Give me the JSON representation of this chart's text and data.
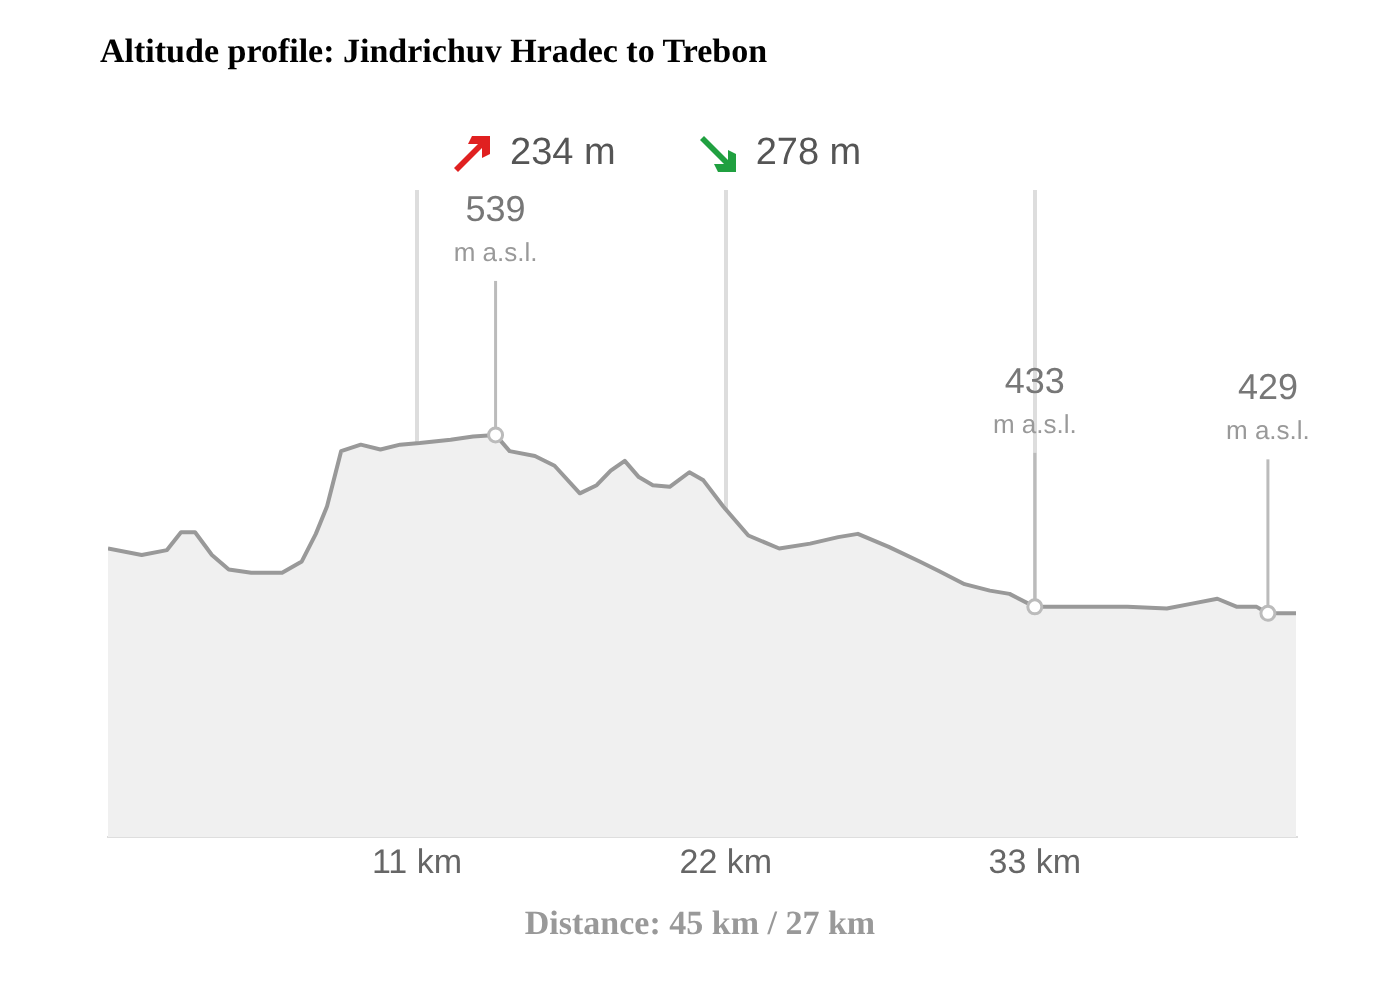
{
  "chart_data": {
    "type": "area",
    "title": "Altitude profile: Jindrichuv Hradec to Trebon",
    "xlabel": "Distance: 45 km / 27 km",
    "annotations": [
      "234 m",
      "278 m"
    ],
    "x": [
      0,
      1.2,
      2.1,
      2.6,
      3.1,
      3.7,
      4.3,
      5.1,
      6.2,
      6.9,
      7.4,
      7.8,
      8.3,
      9.0,
      9.7,
      10.4,
      11.1,
      12.2,
      13.0,
      13.8,
      14.3,
      15.2,
      15.9,
      16.8,
      17.4,
      17.9,
      18.4,
      18.9,
      19.4,
      20.0,
      20.7,
      21.2,
      21.9,
      22.8,
      23.9,
      25.0,
      26.0,
      26.7,
      27.8,
      28.9,
      29.6,
      30.5,
      31.4,
      32.1,
      33.0,
      34.2,
      36.3,
      37.7,
      38.6,
      39.5,
      40.2,
      40.9,
      41.3,
      42.3
    ],
    "values": [
      469,
      465,
      468,
      479,
      479,
      465,
      456,
      454,
      454,
      461,
      478,
      495,
      529,
      533,
      530,
      533,
      534,
      536,
      538,
      539,
      529,
      526,
      520,
      503,
      508,
      517,
      523,
      513,
      508,
      507,
      516,
      511,
      495,
      477,
      469,
      472,
      476,
      478,
      470,
      461,
      455,
      447,
      443,
      441,
      433,
      433,
      433,
      432,
      435,
      438,
      433,
      433,
      429,
      429
    ],
    "value_labels": [
      null,
      null,
      null,
      null,
      null,
      null,
      null,
      null,
      null,
      null,
      null,
      null,
      null,
      null,
      null,
      null,
      null,
      null,
      null,
      "539 m a.s.l.",
      null,
      null,
      null,
      null,
      null,
      null,
      null,
      null,
      null,
      null,
      null,
      null,
      null,
      null,
      null,
      null,
      null,
      null,
      null,
      null,
      null,
      null,
      null,
      null,
      "433 m a.s.l.",
      null,
      null,
      null,
      null,
      null,
      null,
      null,
      "429 m a.s.l.",
      null
    ],
    "color": "#999999",
    "xlim": [
      0,
      42.3
    ],
    "ylim": [
      291,
      690
    ],
    "xticks": [
      {
        "value": 11,
        "label": "11 km"
      },
      {
        "value": 22,
        "label": "22 km"
      },
      {
        "value": 33,
        "label": "33 km"
      }
    ],
    "tick_labels": "x",
    "grid": "x",
    "marker": "none"
  }
}
